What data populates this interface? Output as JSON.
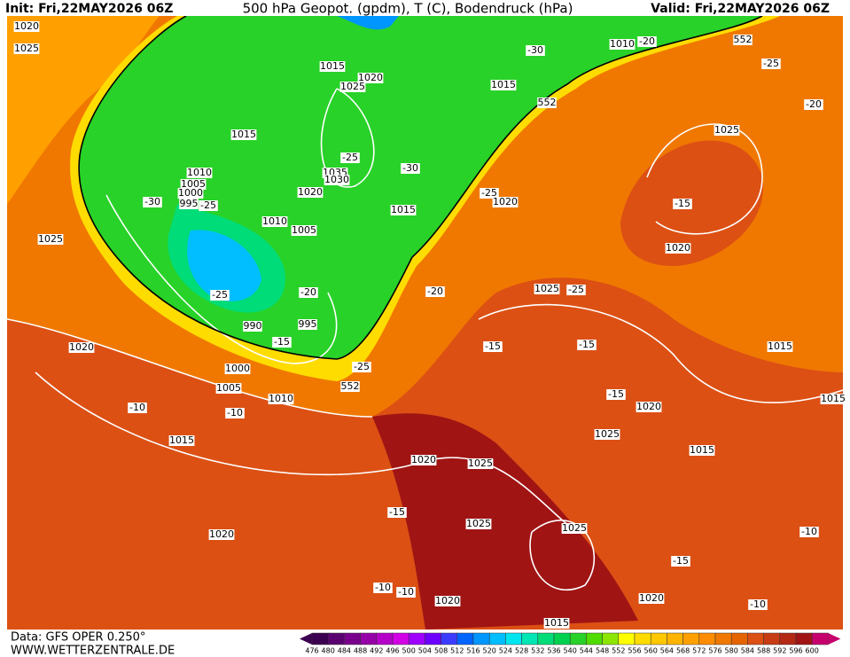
{
  "header": {
    "init": "Init: Fri,22MAY2026 06Z",
    "title": "500 hPa Geopot. (gpdm), T (C), Bodendruck (hPa)",
    "valid": "Valid: Fri,22MAY2026 06Z"
  },
  "footer": {
    "data": "Data: GFS OPER 0.250°",
    "site": "WWW.WETTERZENTRALE.DE"
  },
  "legend": {
    "values": [
      476,
      480,
      484,
      488,
      492,
      496,
      500,
      504,
      508,
      512,
      516,
      520,
      524,
      528,
      532,
      536,
      540,
      544,
      548,
      552,
      556,
      560,
      564,
      568,
      572,
      576,
      580,
      584,
      588,
      592,
      596,
      600
    ],
    "colors": [
      "#3c0050",
      "#5a0070",
      "#78008c",
      "#9600a8",
      "#b400c8",
      "#d200e6",
      "#a000ff",
      "#6e00ff",
      "#3c3cff",
      "#0064ff",
      "#0096ff",
      "#00beff",
      "#00e6f0",
      "#00e6b4",
      "#00dc78",
      "#00d250",
      "#28d228",
      "#50dc00",
      "#8ce600",
      "#ffff00",
      "#ffdc00",
      "#ffc800",
      "#ffb400",
      "#ffa000",
      "#ff8c00",
      "#f07800",
      "#e66400",
      "#dc5014",
      "#c83c14",
      "#b42814",
      "#a01414",
      "#c8006e"
    ]
  },
  "map_labels": [
    "1020",
    "1025",
    "1015",
    "1020",
    "1025",
    "1015",
    "1010",
    "1005",
    "1000",
    "995",
    "-25",
    "-30",
    "-25",
    "1035",
    "1030",
    "1020",
    "-30",
    "1015",
    "1010",
    "1005",
    "-25",
    "-20",
    "990",
    "995",
    "-15",
    "1000",
    "-25",
    "552",
    "1005",
    "1010",
    "-10",
    "-10",
    "1015",
    "1020",
    "1025",
    "-30",
    "1010",
    "-20",
    "552",
    "-25",
    "1015",
    "552",
    "-20",
    "1025",
    "-25",
    "1020",
    "-15",
    "1020",
    "-20",
    "1025",
    "-25",
    "-15",
    "-15",
    "1015",
    "-15",
    "1020",
    "1015",
    "1025",
    "1015",
    "1020",
    "1025",
    "-15",
    "1025",
    "1025",
    "-10",
    "1020",
    "-15",
    "-10",
    "-10",
    "1020",
    "1020",
    "-10",
    "1015"
  ]
}
